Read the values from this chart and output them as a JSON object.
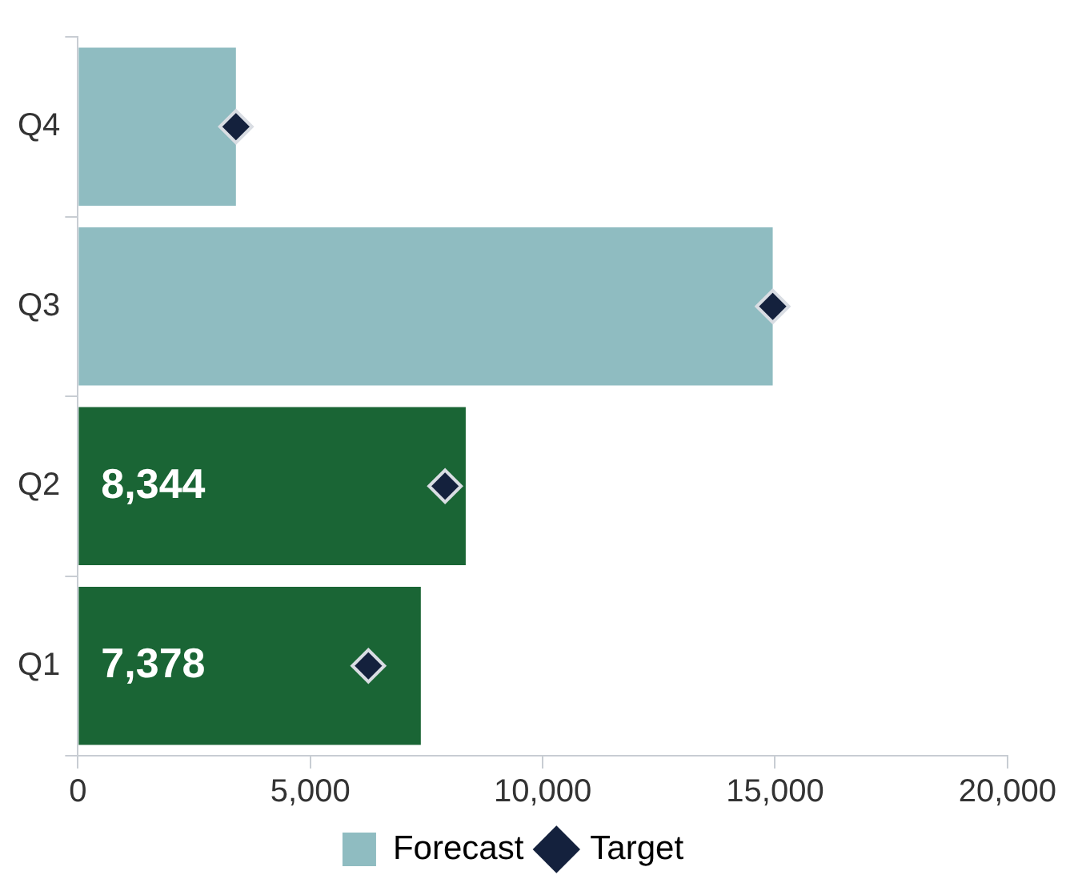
{
  "chart_data": {
    "type": "bar",
    "orientation": "horizontal",
    "categories": [
      "Q4",
      "Q3",
      "Q2",
      "Q1"
    ],
    "series": [
      {
        "color": "#1a6535",
        "values": [
          null,
          null,
          8344,
          7378
        ],
        "value_labels": [
          null,
          null,
          "8,344",
          "7,378"
        ]
      },
      {
        "name": "Forecast",
        "color": "#8fbcc1",
        "values": [
          3400,
          14950,
          null,
          null
        ]
      },
      {
        "name": "Target",
        "type": "scatter",
        "marker": "diamond",
        "color": "#14213d",
        "values": [
          3400,
          14950,
          7900,
          6250
        ]
      }
    ],
    "xlim": [
      0,
      20000
    ],
    "xticks": [
      {
        "value": 0,
        "label": "0"
      },
      {
        "value": 5000,
        "label": "5,000"
      },
      {
        "value": 10000,
        "label": "10,000"
      },
      {
        "value": 15000,
        "label": "15,000"
      },
      {
        "value": 20000,
        "label": "20,000"
      }
    ],
    "grid": false,
    "legend": "bottom",
    "stacked": true
  }
}
